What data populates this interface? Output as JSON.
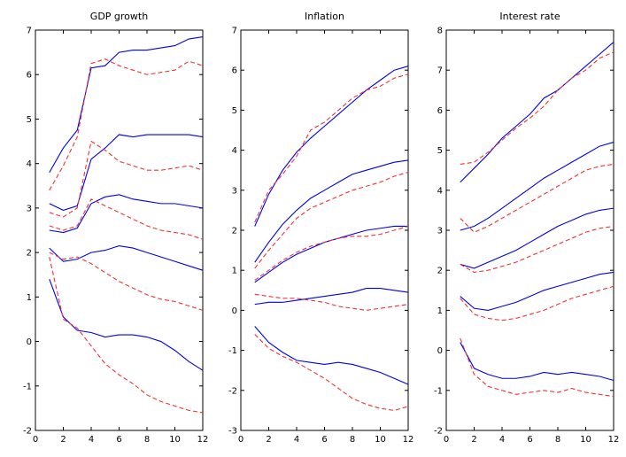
{
  "page": {
    "background": "#ffffff",
    "axis_color": "#000000",
    "solid_series_color": "#0000ee",
    "dashed_series_color": "#ee3333"
  },
  "chart_data": [
    {
      "type": "line",
      "title": "GDP growth",
      "xlabel": "",
      "ylabel": "",
      "x": [
        1,
        2,
        3,
        4,
        5,
        6,
        7,
        8,
        9,
        10,
        11,
        12
      ],
      "xlim": [
        0,
        12
      ],
      "ylim": [
        -2,
        7
      ],
      "xticks": [
        0,
        2,
        4,
        6,
        8,
        10,
        12
      ],
      "yticks": [
        -2,
        -1,
        0,
        1,
        2,
        3,
        4,
        5,
        6,
        7
      ],
      "grid": false,
      "legend": "none",
      "series": [
        {
          "name": "blue-solid-q90",
          "color": "#0000ee",
          "dash": false,
          "values": [
            3.8,
            4.35,
            4.75,
            6.15,
            6.2,
            6.5,
            6.55,
            6.55,
            6.6,
            6.65,
            6.8,
            6.85
          ]
        },
        {
          "name": "red-dashed-q90",
          "color": "#ee3333",
          "dash": true,
          "values": [
            3.4,
            3.95,
            4.6,
            6.25,
            6.35,
            6.2,
            6.1,
            6.0,
            6.05,
            6.1,
            6.3,
            6.2
          ]
        },
        {
          "name": "blue-solid-q70",
          "color": "#0000ee",
          "dash": false,
          "values": [
            3.1,
            2.95,
            3.05,
            4.1,
            4.35,
            4.65,
            4.6,
            4.65,
            4.65,
            4.65,
            4.65,
            4.6
          ]
        },
        {
          "name": "red-dashed-q70",
          "color": "#ee3333",
          "dash": true,
          "values": [
            2.9,
            2.8,
            3.0,
            4.5,
            4.3,
            4.05,
            3.95,
            3.85,
            3.85,
            3.9,
            3.95,
            3.85
          ]
        },
        {
          "name": "blue-solid-q50",
          "color": "#0000ee",
          "dash": false,
          "values": [
            2.5,
            2.45,
            2.55,
            3.1,
            3.25,
            3.3,
            3.2,
            3.15,
            3.1,
            3.1,
            3.05,
            3.0
          ]
        },
        {
          "name": "red-dashed-q50",
          "color": "#ee3333",
          "dash": true,
          "values": [
            2.6,
            2.5,
            2.6,
            3.2,
            3.05,
            2.9,
            2.75,
            2.6,
            2.5,
            2.45,
            2.4,
            2.3
          ]
        },
        {
          "name": "blue-solid-q30",
          "color": "#0000ee",
          "dash": false,
          "values": [
            2.1,
            1.8,
            1.85,
            2.0,
            2.05,
            2.15,
            2.1,
            2.0,
            1.9,
            1.8,
            1.7,
            1.6
          ]
        },
        {
          "name": "red-dashed-q30",
          "color": "#ee3333",
          "dash": true,
          "values": [
            2.0,
            1.85,
            1.9,
            1.75,
            1.55,
            1.35,
            1.2,
            1.05,
            0.95,
            0.9,
            0.8,
            0.7
          ]
        },
        {
          "name": "blue-solid-q10",
          "color": "#0000ee",
          "dash": false,
          "values": [
            1.4,
            0.55,
            0.25,
            0.2,
            0.1,
            0.15,
            0.15,
            0.1,
            0.0,
            -0.2,
            -0.45,
            -0.65
          ]
        },
        {
          "name": "red-dashed-q10",
          "color": "#ee3333",
          "dash": true,
          "values": [
            1.9,
            0.5,
            0.3,
            -0.1,
            -0.5,
            -0.75,
            -0.95,
            -1.2,
            -1.35,
            -1.45,
            -1.55,
            -1.6
          ]
        }
      ]
    },
    {
      "type": "line",
      "title": "Inflation",
      "xlabel": "",
      "ylabel": "",
      "x": [
        1,
        2,
        3,
        4,
        5,
        6,
        7,
        8,
        9,
        10,
        11,
        12
      ],
      "xlim": [
        0,
        12
      ],
      "ylim": [
        -3,
        7
      ],
      "xticks": [
        0,
        2,
        4,
        6,
        8,
        10,
        12
      ],
      "yticks": [
        -3,
        -2,
        -1,
        0,
        1,
        2,
        3,
        4,
        5,
        6,
        7
      ],
      "grid": false,
      "legend": "none",
      "series": [
        {
          "name": "blue-solid-q90",
          "color": "#0000ee",
          "dash": false,
          "values": [
            2.1,
            2.9,
            3.5,
            3.95,
            4.3,
            4.6,
            4.9,
            5.2,
            5.5,
            5.75,
            6.0,
            6.1
          ]
        },
        {
          "name": "red-dashed-q90",
          "color": "#ee3333",
          "dash": true,
          "values": [
            2.2,
            3.0,
            3.4,
            3.85,
            4.5,
            4.7,
            5.0,
            5.3,
            5.5,
            5.6,
            5.8,
            5.9
          ]
        },
        {
          "name": "blue-solid-q70",
          "color": "#0000ee",
          "dash": false,
          "values": [
            1.2,
            1.7,
            2.15,
            2.5,
            2.8,
            3.0,
            3.2,
            3.4,
            3.5,
            3.6,
            3.7,
            3.75
          ]
        },
        {
          "name": "red-dashed-q70",
          "color": "#ee3333",
          "dash": true,
          "values": [
            1.05,
            1.5,
            1.9,
            2.3,
            2.55,
            2.7,
            2.85,
            3.0,
            3.1,
            3.2,
            3.35,
            3.45
          ]
        },
        {
          "name": "blue-solid-q50",
          "color": "#0000ee",
          "dash": false,
          "values": [
            0.7,
            0.95,
            1.2,
            1.4,
            1.55,
            1.7,
            1.8,
            1.9,
            2.0,
            2.05,
            2.1,
            2.1
          ]
        },
        {
          "name": "red-dashed-q50",
          "color": "#ee3333",
          "dash": true,
          "values": [
            0.75,
            1.0,
            1.25,
            1.45,
            1.6,
            1.7,
            1.8,
            1.85,
            1.85,
            1.9,
            2.0,
            2.1
          ]
        },
        {
          "name": "blue-solid-q30",
          "color": "#0000ee",
          "dash": false,
          "values": [
            0.15,
            0.2,
            0.2,
            0.25,
            0.3,
            0.35,
            0.4,
            0.45,
            0.55,
            0.55,
            0.5,
            0.45
          ]
        },
        {
          "name": "red-dashed-q30",
          "color": "#ee3333",
          "dash": true,
          "values": [
            0.4,
            0.35,
            0.3,
            0.3,
            0.25,
            0.2,
            0.1,
            0.05,
            0.0,
            0.05,
            0.1,
            0.15
          ]
        },
        {
          "name": "blue-solid-q10",
          "color": "#0000ee",
          "dash": false,
          "values": [
            -0.4,
            -0.8,
            -1.05,
            -1.25,
            -1.3,
            -1.35,
            -1.3,
            -1.35,
            -1.45,
            -1.55,
            -1.7,
            -1.85
          ]
        },
        {
          "name": "red-dashed-q10",
          "color": "#ee3333",
          "dash": true,
          "values": [
            -0.6,
            -0.95,
            -1.15,
            -1.3,
            -1.5,
            -1.7,
            -1.95,
            -2.2,
            -2.35,
            -2.45,
            -2.5,
            -2.4
          ]
        }
      ]
    },
    {
      "type": "line",
      "title": "Interest rate",
      "xlabel": "",
      "ylabel": "",
      "x": [
        1,
        2,
        3,
        4,
        5,
        6,
        7,
        8,
        9,
        10,
        11,
        12
      ],
      "xlim": [
        0,
        12
      ],
      "ylim": [
        -2,
        8
      ],
      "xticks": [
        0,
        2,
        4,
        6,
        8,
        10,
        12
      ],
      "yticks": [
        -2,
        -1,
        0,
        1,
        2,
        3,
        4,
        5,
        6,
        7,
        8
      ],
      "grid": false,
      "legend": "none",
      "series": [
        {
          "name": "blue-solid-q90",
          "color": "#0000ee",
          "dash": false,
          "values": [
            4.2,
            4.55,
            4.9,
            5.3,
            5.6,
            5.9,
            6.3,
            6.5,
            6.8,
            7.1,
            7.4,
            7.7
          ]
        },
        {
          "name": "red-dashed-q90",
          "color": "#ee3333",
          "dash": true,
          "values": [
            4.65,
            4.7,
            4.95,
            5.25,
            5.55,
            5.8,
            6.1,
            6.5,
            6.8,
            7.0,
            7.3,
            7.45
          ]
        },
        {
          "name": "blue-solid-q70",
          "color": "#0000ee",
          "dash": false,
          "values": [
            3.0,
            3.1,
            3.3,
            3.55,
            3.8,
            4.05,
            4.3,
            4.5,
            4.7,
            4.9,
            5.1,
            5.2
          ]
        },
        {
          "name": "red-dashed-q70",
          "color": "#ee3333",
          "dash": true,
          "values": [
            3.3,
            2.95,
            3.1,
            3.3,
            3.5,
            3.7,
            3.9,
            4.1,
            4.3,
            4.5,
            4.6,
            4.65
          ]
        },
        {
          "name": "blue-solid-q50",
          "color": "#0000ee",
          "dash": false,
          "values": [
            2.15,
            2.05,
            2.2,
            2.35,
            2.5,
            2.7,
            2.9,
            3.1,
            3.25,
            3.4,
            3.5,
            3.55
          ]
        },
        {
          "name": "red-dashed-q50",
          "color": "#ee3333",
          "dash": true,
          "values": [
            2.15,
            1.95,
            2.0,
            2.1,
            2.2,
            2.35,
            2.5,
            2.65,
            2.8,
            2.95,
            3.05,
            3.1
          ]
        },
        {
          "name": "blue-solid-q30",
          "color": "#0000ee",
          "dash": false,
          "values": [
            1.35,
            1.05,
            1.0,
            1.1,
            1.2,
            1.35,
            1.5,
            1.6,
            1.7,
            1.8,
            1.9,
            1.95
          ]
        },
        {
          "name": "red-dashed-q30",
          "color": "#ee3333",
          "dash": true,
          "values": [
            1.3,
            0.9,
            0.8,
            0.75,
            0.8,
            0.9,
            1.0,
            1.15,
            1.3,
            1.4,
            1.5,
            1.6
          ]
        },
        {
          "name": "blue-solid-q10",
          "color": "#0000ee",
          "dash": false,
          "values": [
            0.2,
            -0.45,
            -0.6,
            -0.7,
            -0.7,
            -0.65,
            -0.55,
            -0.6,
            -0.55,
            -0.6,
            -0.65,
            -0.75
          ]
        },
        {
          "name": "red-dashed-q10",
          "color": "#ee3333",
          "dash": true,
          "values": [
            0.3,
            -0.6,
            -0.9,
            -1.0,
            -1.1,
            -1.05,
            -1.0,
            -1.05,
            -0.95,
            -1.05,
            -1.1,
            -1.15
          ]
        }
      ]
    }
  ]
}
